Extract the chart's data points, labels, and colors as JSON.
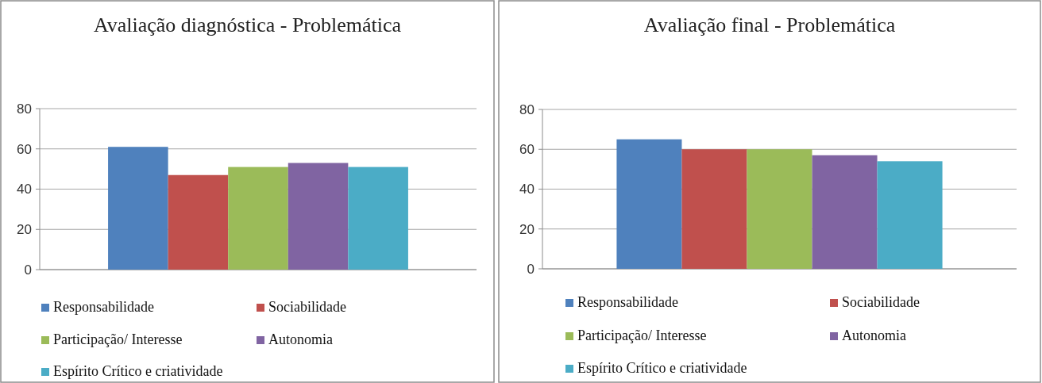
{
  "chart_data": [
    {
      "type": "bar",
      "title": "Avaliação diagnóstica - Problemática",
      "categories": [
        null
      ],
      "series": [
        {
          "name": "Responsabilidade",
          "color": "#4f81bd",
          "values": [
            61
          ]
        },
        {
          "name": "Sociabilidade",
          "color": "#c0504d",
          "values": [
            47
          ]
        },
        {
          "name": "Participação/ Interesse",
          "color": "#9bbb59",
          "values": [
            51
          ]
        },
        {
          "name": "Autonomia",
          "color": "#8064a2",
          "values": [
            53
          ]
        },
        {
          "name": "Espírito Crítico e criatividade",
          "color": "#4bacc6",
          "values": [
            51
          ]
        }
      ],
      "ylim": [
        0,
        80
      ],
      "yticks": [
        0,
        20,
        40,
        60,
        80
      ],
      "grid": "y",
      "legend": "bottom"
    },
    {
      "type": "bar",
      "title": "Avaliação final - Problemática",
      "categories": [
        null
      ],
      "series": [
        {
          "name": "Responsabilidade",
          "color": "#4f81bd",
          "values": [
            65
          ]
        },
        {
          "name": "Sociabilidade",
          "color": "#c0504d",
          "values": [
            60
          ]
        },
        {
          "name": "Participação/ Interesse",
          "color": "#9bbb59",
          "values": [
            60
          ]
        },
        {
          "name": "Autonomia",
          "color": "#8064a2",
          "values": [
            57
          ]
        },
        {
          "name": "Espírito Crítico e criatividade",
          "color": "#4bacc6",
          "values": [
            54
          ]
        }
      ],
      "ylim": [
        0,
        80
      ],
      "yticks": [
        0,
        20,
        40,
        60,
        80
      ],
      "grid": "y",
      "legend": "bottom"
    }
  ]
}
